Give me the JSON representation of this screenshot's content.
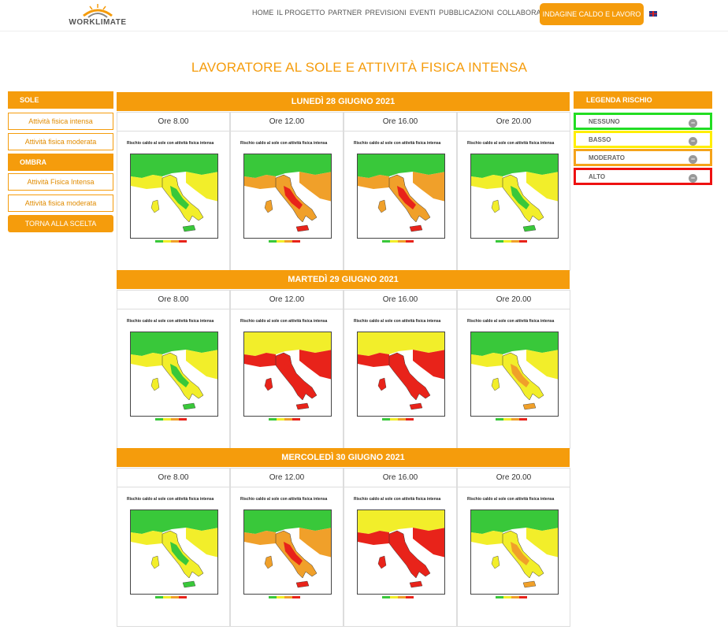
{
  "header": {
    "logo_text": "WORKLIMATE",
    "nav": [
      "HOME",
      "IL PROGETTO",
      "PARTNER",
      "PREVISIONI",
      "EVENTI",
      "PUBBLICAZIONI",
      "COLLABORAZIONI"
    ],
    "cta": "INDAGINE CALDO E LAVORO"
  },
  "page_title": "LAVORATORE AL SOLE E ATTIVITÀ FISICA INTENSA",
  "sidebar": {
    "sole_heading": "SOLE",
    "sole_items": [
      "Attività fisica intensa",
      "Attività fisica moderata"
    ],
    "ombra_heading": "OMBRA",
    "ombra_items": [
      "Attività Fisica Intensa",
      "Attività fisica moderata"
    ],
    "back": "TORNA ALLA SCELTA"
  },
  "days": [
    {
      "label": "LUNEDÌ 28 GIUGNO 2021",
      "times": [
        "Ore 8.00",
        "Ore 12.00",
        "Ore 16.00",
        "Ore 20.00"
      ]
    },
    {
      "label": "MARTEDÌ 29 GIUGNO 2021",
      "times": [
        "Ore 8.00",
        "Ore 12.00",
        "Ore 16.00",
        "Ore 20.00"
      ]
    },
    {
      "label": "MERCOLEDÌ 30 GIUGNO 2021",
      "times": [
        "Ore 8.00",
        "Ore 12.00",
        "Ore 16.00",
        "Ore 20.00"
      ]
    }
  ],
  "map": {
    "title": "Rischio caldo al sole con attività fisica intensa"
  },
  "legend": {
    "heading": "LEGENDA RISCHIO",
    "items": [
      {
        "label": "NESSUNO",
        "color": "#22dd22"
      },
      {
        "label": "BASSO",
        "color": "#ffee00"
      },
      {
        "label": "MODERATO",
        "color": "#f5a31a"
      },
      {
        "label": "ALTO",
        "color": "#ee1111"
      }
    ]
  },
  "colors": {
    "accent": "#f59c0c",
    "none": "#39c83a",
    "low": "#f2ee2a",
    "moderate": "#f0a02a",
    "high": "#e8231a"
  }
}
